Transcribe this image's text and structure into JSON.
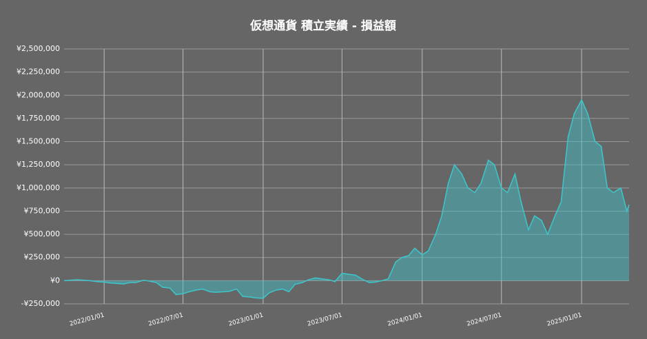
{
  "chart_data": {
    "type": "area",
    "title": "仮想通貨 積立実績 - 損益額",
    "x": [
      "2021/10/01",
      "2021/10/15",
      "2021/11/01",
      "2021/11/15",
      "2021/12/01",
      "2021/12/15",
      "2022/01/01",
      "2022/01/15",
      "2022/02/01",
      "2022/02/15",
      "2022/03/01",
      "2022/03/15",
      "2022/04/01",
      "2022/04/15",
      "2022/05/01",
      "2022/05/15",
      "2022/06/01",
      "2022/06/15",
      "2022/07/01",
      "2022/07/15",
      "2022/08/01",
      "2022/08/15",
      "2022/09/01",
      "2022/09/15",
      "2022/10/01",
      "2022/10/15",
      "2022/11/01",
      "2022/11/15",
      "2022/12/01",
      "2022/12/15",
      "2023/01/01",
      "2023/01/15",
      "2023/02/01",
      "2023/02/15",
      "2023/03/01",
      "2023/03/15",
      "2023/04/01",
      "2023/04/15",
      "2023/05/01",
      "2023/05/15",
      "2023/06/01",
      "2023/06/15",
      "2023/07/01",
      "2023/07/15",
      "2023/08/01",
      "2023/08/15",
      "2023/09/01",
      "2023/09/15",
      "2023/10/01",
      "2023/10/15",
      "2023/11/01",
      "2023/11/15",
      "2023/12/01",
      "2023/12/15",
      "2024/01/01",
      "2024/01/15",
      "2024/02/01",
      "2024/02/15",
      "2024/03/01",
      "2024/03/15",
      "2024/04/01",
      "2024/04/15",
      "2024/05/01",
      "2024/05/15",
      "2024/06/01",
      "2024/06/15",
      "2024/07/01",
      "2024/07/15",
      "2024/08/01",
      "2024/08/15",
      "2024/09/01",
      "2024/09/15",
      "2024/10/01",
      "2024/10/15",
      "2024/11/01",
      "2024/11/15",
      "2024/12/01",
      "2024/12/15",
      "2025/01/01",
      "2025/01/15",
      "2025/02/01",
      "2025/02/15",
      "2025/03/01",
      "2025/03/15",
      "2025/04/01",
      "2025/04/15",
      "2025/04/20"
    ],
    "values": [
      0,
      5000,
      10000,
      5000,
      0,
      -10000,
      -15000,
      -25000,
      -30000,
      -35000,
      -20000,
      -20000,
      5000,
      -5000,
      -20000,
      -70000,
      -80000,
      -150000,
      -140000,
      -120000,
      -100000,
      -90000,
      -120000,
      -125000,
      -120000,
      -115000,
      -90000,
      -170000,
      -175000,
      -185000,
      -190000,
      -130000,
      -100000,
      -90000,
      -120000,
      -40000,
      -20000,
      10000,
      30000,
      20000,
      10000,
      -10000,
      80000,
      70000,
      60000,
      20000,
      -20000,
      -15000,
      0,
      20000,
      200000,
      250000,
      270000,
      350000,
      280000,
      320000,
      500000,
      700000,
      1050000,
      1250000,
      1150000,
      1000000,
      950000,
      1050000,
      1300000,
      1250000,
      1000000,
      950000,
      1150000,
      850000,
      550000,
      700000,
      650000,
      500000,
      700000,
      850000,
      1550000,
      1800000,
      1950000,
      1800000,
      1500000,
      1450000,
      1000000,
      950000,
      1000000,
      750000,
      820000
    ],
    "color": "#3ec3c9",
    "xlim": [
      "2021/10/01",
      "2025/04/20"
    ],
    "xticks": [
      "2022/01/01",
      "2022/07/01",
      "2023/01/01",
      "2023/07/01",
      "2024/01/01",
      "2024/07/01",
      "2025/01/01"
    ],
    "ylim": [
      -250000,
      2500000
    ],
    "yticks": [
      {
        "value": -250000,
        "label": "-¥250,000"
      },
      {
        "value": 0,
        "label": "¥0"
      },
      {
        "value": 250000,
        "label": "¥250,000"
      },
      {
        "value": 500000,
        "label": "¥500,000"
      },
      {
        "value": 750000,
        "label": "¥750,000"
      },
      {
        "value": 1000000,
        "label": "¥1,000,000"
      },
      {
        "value": 1250000,
        "label": "¥1,250,000"
      },
      {
        "value": 1500000,
        "label": "¥1,500,000"
      },
      {
        "value": 1750000,
        "label": "¥1,750,000"
      },
      {
        "value": 2000000,
        "label": "¥2,000,000"
      },
      {
        "value": 2250000,
        "label": "¥2,250,000"
      },
      {
        "value": 2500000,
        "label": "¥2,500,000"
      }
    ],
    "grid": true
  }
}
